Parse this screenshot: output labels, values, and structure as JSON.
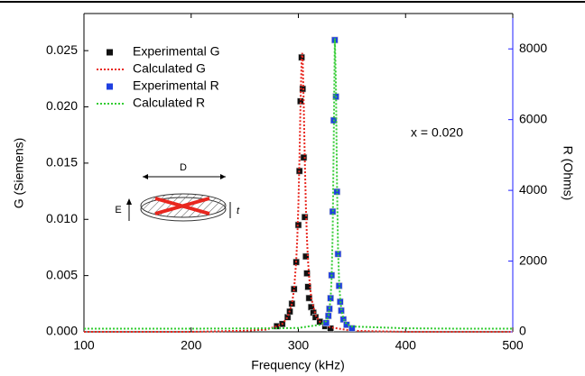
{
  "chart_data": {
    "type": "scatter",
    "xlabel": "Frequency (kHz)",
    "ylabel": "G (Siemens)",
    "y2label": "R (Ohms)",
    "annotation": "x = 0.020",
    "inset_labels": [
      "D",
      "E",
      "t"
    ],
    "xlim": [
      100,
      500
    ],
    "xticks": [
      100,
      200,
      300,
      400,
      500
    ],
    "ylim": [
      0,
      0.0283
    ],
    "yticks": [
      {
        "value": 0,
        "label": "0.000"
      },
      {
        "value": 0.005,
        "label": "0.005"
      },
      {
        "value": 0.01,
        "label": "0.010"
      },
      {
        "value": 0.015,
        "label": "0.015"
      },
      {
        "value": 0.02,
        "label": "0.020"
      },
      {
        "value": 0.025,
        "label": "0.025"
      }
    ],
    "y2lim": [
      0,
      9000
    ],
    "y2ticks": [
      0,
      2000,
      4000,
      6000,
      8000
    ],
    "y2color": "#1f1fff",
    "legend": "upper left",
    "series": [
      {
        "name": "Experimental G",
        "color": "#111111",
        "kind": "marker",
        "axis": "y",
        "x": [
          280,
          285,
          290,
          292,
          294,
          296,
          298,
          300,
          301,
          302,
          303,
          304,
          305,
          306,
          307,
          308,
          309,
          310,
          312,
          314,
          316,
          320,
          325,
          330
        ],
        "values": [
          0.0005,
          0.0007,
          0.0013,
          0.0018,
          0.0025,
          0.0038,
          0.0062,
          0.0095,
          0.0143,
          0.0205,
          0.0244,
          0.0216,
          0.0155,
          0.0102,
          0.0067,
          0.0052,
          0.004,
          0.003,
          0.0022,
          0.0017,
          0.0013,
          0.0009,
          0.0005,
          0.0003
        ]
      },
      {
        "name": "Calculated G",
        "color": "#e8261e",
        "kind": "line",
        "axis": "y",
        "x": [
          100,
          150,
          200,
          250,
          270,
          280,
          285,
          290,
          294,
          296,
          298,
          299,
          300,
          301,
          302,
          303,
          303.5,
          304,
          305,
          306,
          307,
          308,
          309,
          310,
          312,
          316,
          320,
          330,
          350,
          400,
          450,
          500
        ],
        "values": [
          0,
          0,
          0,
          0.0001,
          0.0002,
          0.0005,
          0.0007,
          0.0013,
          0.0025,
          0.0038,
          0.0063,
          0.0083,
          0.0112,
          0.0154,
          0.0203,
          0.0242,
          0.0248,
          0.0242,
          0.0203,
          0.0154,
          0.0112,
          0.0083,
          0.0063,
          0.0049,
          0.003,
          0.0015,
          0.0009,
          0.0004,
          0.0001,
          0,
          0,
          0
        ]
      },
      {
        "name": "Experimental R",
        "color": "#1f3fe0",
        "kind": "marker",
        "axis": "y2",
        "x": [
          326,
          328,
          329,
          330,
          331,
          332,
          333,
          334,
          335,
          336,
          337,
          338,
          339,
          340,
          342,
          345,
          350
        ],
        "values": [
          250,
          450,
          650,
          950,
          1600,
          3400,
          5980,
          8250,
          6650,
          3960,
          2200,
          1300,
          850,
          600,
          350,
          200,
          100
        ]
      },
      {
        "name": "Calculated R",
        "color": "#33cc33",
        "kind": "line",
        "axis": "y2",
        "x": [
          100,
          200,
          280,
          300,
          320,
          326,
          328,
          330,
          331,
          332,
          333,
          334,
          335,
          336,
          337,
          338,
          339,
          340,
          342,
          345,
          350,
          400,
          450,
          500
        ],
        "values": [
          90,
          90,
          100,
          110,
          200,
          300,
          450,
          900,
          1500,
          2800,
          5500,
          8300,
          7000,
          4200,
          2400,
          1450,
          950,
          650,
          370,
          220,
          150,
          100,
          90,
          90
        ]
      }
    ]
  }
}
